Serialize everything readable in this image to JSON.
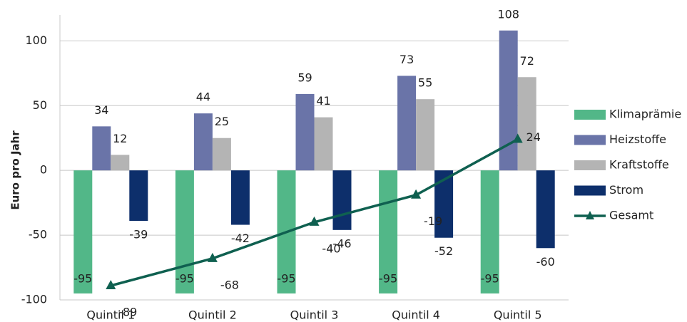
{
  "chart_data": {
    "type": "bar",
    "y_label": "Euro pro Jahr",
    "categories": [
      "Quintil 1",
      "Quintil 2",
      "Quintil 3",
      "Quintil 4",
      "Quintil 5"
    ],
    "series": [
      {
        "name": "Klimaprämie",
        "color": "#52b788",
        "values": [
          -95,
          -95,
          -95,
          -95,
          -95
        ]
      },
      {
        "name": "Heizstoffe",
        "color": "#6a74a8",
        "values": [
          34,
          44,
          59,
          73,
          108
        ]
      },
      {
        "name": "Kraftstoffe",
        "color": "#b4b4b4",
        "values": [
          12,
          25,
          41,
          55,
          72
        ]
      },
      {
        "name": "Strom",
        "color": "#0d2f6b",
        "values": [
          -39,
          -42,
          -46,
          -52,
          -60
        ]
      },
      {
        "name": "Gesamt",
        "type": "line",
        "color": "#0f6050",
        "values": [
          -89,
          -68,
          -40,
          -19,
          24
        ]
      }
    ],
    "ylim": [
      -100,
      120
    ],
    "yticks": [
      -100,
      -50,
      0,
      50,
      100
    ],
    "grid": true,
    "legend": "right"
  }
}
